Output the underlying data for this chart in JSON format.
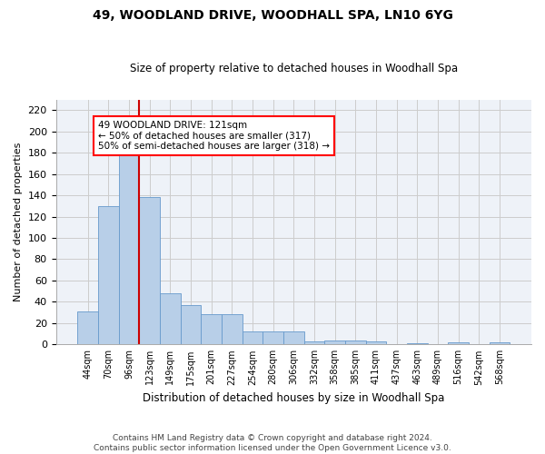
{
  "title": "49, WOODLAND DRIVE, WOODHALL SPA, LN10 6YG",
  "subtitle": "Size of property relative to detached houses in Woodhall Spa",
  "xlabel": "Distribution of detached houses by size in Woodhall Spa",
  "ylabel": "Number of detached properties",
  "footer_line1": "Contains HM Land Registry data © Crown copyright and database right 2024.",
  "footer_line2": "Contains public sector information licensed under the Open Government Licence v3.0.",
  "bar_labels": [
    "44sqm",
    "70sqm",
    "96sqm",
    "123sqm",
    "149sqm",
    "175sqm",
    "201sqm",
    "227sqm",
    "254sqm",
    "280sqm",
    "306sqm",
    "332sqm",
    "358sqm",
    "385sqm",
    "411sqm",
    "437sqm",
    "463sqm",
    "489sqm",
    "516sqm",
    "542sqm",
    "568sqm"
  ],
  "bar_values": [
    31,
    130,
    178,
    138,
    48,
    37,
    28,
    28,
    12,
    12,
    12,
    3,
    4,
    4,
    3,
    0,
    1,
    0,
    2,
    0,
    2
  ],
  "bar_color": "#b8cfe8",
  "bar_edge_color": "#6699cc",
  "annotation_box_text": "49 WOODLAND DRIVE: 121sqm\n← 50% of detached houses are smaller (317)\n50% of semi-detached houses are larger (318) →",
  "vline_color": "#cc0000",
  "ylim": [
    0,
    230
  ],
  "yticks": [
    0,
    20,
    40,
    60,
    80,
    100,
    120,
    140,
    160,
    180,
    200,
    220
  ],
  "grid_color": "#cccccc",
  "background_color": "#eef2f8"
}
